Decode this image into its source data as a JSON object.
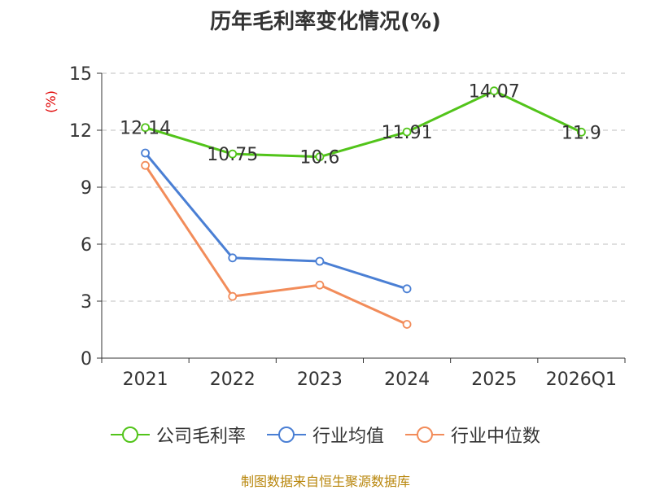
{
  "chart_data": {
    "type": "line",
    "title": "历年毛利率变化情况(%)",
    "ylabel": "(%)",
    "xlabel": "",
    "categories": [
      "2021",
      "2022",
      "2023",
      "2024",
      "2025",
      "2026Q1"
    ],
    "ylim": [
      0,
      15
    ],
    "yticks": [
      0,
      3,
      6,
      9,
      12,
      15
    ],
    "grid": true,
    "legend_position": "bottom",
    "series": [
      {
        "name": "公司毛利率",
        "color": "#52c41a",
        "values": [
          12.14,
          10.75,
          10.6,
          11.91,
          14.07,
          11.9
        ],
        "labels": [
          "12.14",
          "10.75",
          "10.6",
          "11.91",
          "14.07",
          "11.9"
        ]
      },
      {
        "name": "行业均值",
        "color": "#4a7fd4",
        "values": [
          10.8,
          5.28,
          5.1,
          3.65,
          null,
          null
        ]
      },
      {
        "name": "行业中位数",
        "color": "#f28c5a",
        "values": [
          10.15,
          3.25,
          3.85,
          1.78,
          null,
          null
        ]
      }
    ]
  },
  "footer": "制图数据来自恒生聚源数据库",
  "colors": {
    "axis": "#333333",
    "grid": "#cccccc",
    "ylabel": "#e00000"
  }
}
